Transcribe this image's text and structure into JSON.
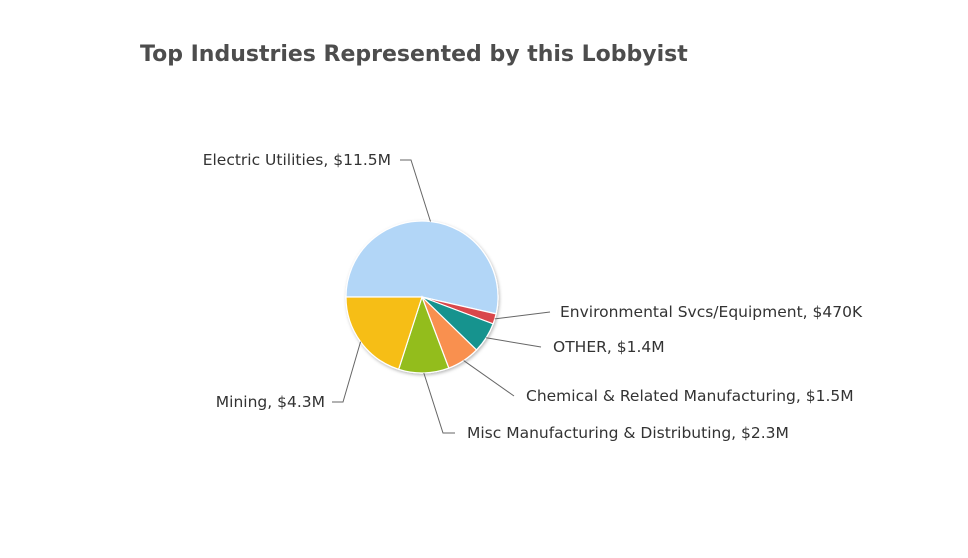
{
  "chart_data": {
    "type": "pie",
    "title": "Top Industries Represented by this Lobbyist",
    "slices": [
      {
        "name": "Electric Utilities",
        "value": 11.5,
        "label": "Electric Utilities, $11.5M",
        "color": "#B2D6F7"
      },
      {
        "name": "Environmental Svcs/Equipment",
        "value": 0.47,
        "label": "Environmental Svcs/Equipment, $470K",
        "color": "#D9474C"
      },
      {
        "name": "OTHER",
        "value": 1.4,
        "label": "OTHER, $1.4M",
        "color": "#12938E"
      },
      {
        "name": "Chemical & Related Manufacturing",
        "value": 1.5,
        "label": "Chemical & Related Manufacturing, $1.5M",
        "color": "#F99050"
      },
      {
        "name": "Misc Manufacturing & Distributing",
        "value": 2.3,
        "label": "Misc Manufacturing & Distributing, $2.3M",
        "color": "#93BD1C"
      },
      {
        "name": "Mining",
        "value": 4.3,
        "label": "Mining, $4.3M",
        "color": "#F6BE16"
      }
    ],
    "units": "USD millions"
  }
}
